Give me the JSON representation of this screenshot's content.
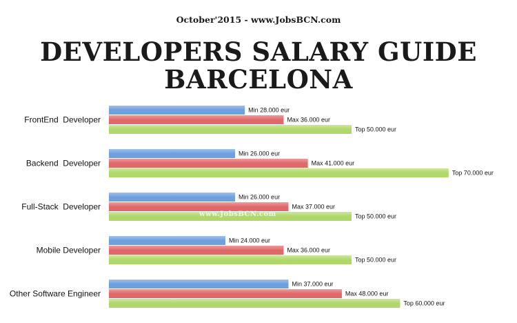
{
  "header": {
    "subtitle": "October'2015 - www.JobsBCN.com",
    "title_line1": "DEVELOPERS SALARY GUIDE",
    "title_line2": "BARCELONA"
  },
  "watermark": "www.JobsBCN.com",
  "chart_data": {
    "type": "bar",
    "orientation": "horizontal",
    "title": "DEVELOPERS SALARY GUIDE BARCELONA",
    "subtitle": "October'2015 - www.JobsBCN.com",
    "unit": "eur",
    "categories": [
      "FrontEnd  Developer",
      "Backend  Developer",
      "Full-Stack  Developer",
      "Mobile Developer",
      "Other Software Engineer"
    ],
    "series": [
      {
        "name": "Min",
        "color": "#6e9fde",
        "values": [
          28000,
          26000,
          26000,
          24000,
          37000
        ],
        "labels": [
          "Min 28.000 eur",
          "Min 26.000 eur",
          "Min 26.000 eur",
          "Min 24.000 eur",
          "Min 37.000 eur"
        ]
      },
      {
        "name": "Max",
        "color": "#e0686a",
        "values": [
          36000,
          41000,
          37000,
          36000,
          48000
        ],
        "labels": [
          "Max 36.000 eur",
          "Max 41.000 eur",
          "Max 37.000 eur",
          "Max 36.000 eur",
          "Max 48.000 eur"
        ]
      },
      {
        "name": "Top",
        "color": "#b0d76a",
        "values": [
          50000,
          70000,
          50000,
          50000,
          60000
        ],
        "labels": [
          "Top 50.000 eur",
          "Top 70.000 eur",
          "Top 50.000 eur",
          "Top 50.000 eur",
          "Top 60.000 eur"
        ]
      }
    ],
    "xlim": [
      0,
      70000
    ],
    "grid": false,
    "legend": "none"
  }
}
